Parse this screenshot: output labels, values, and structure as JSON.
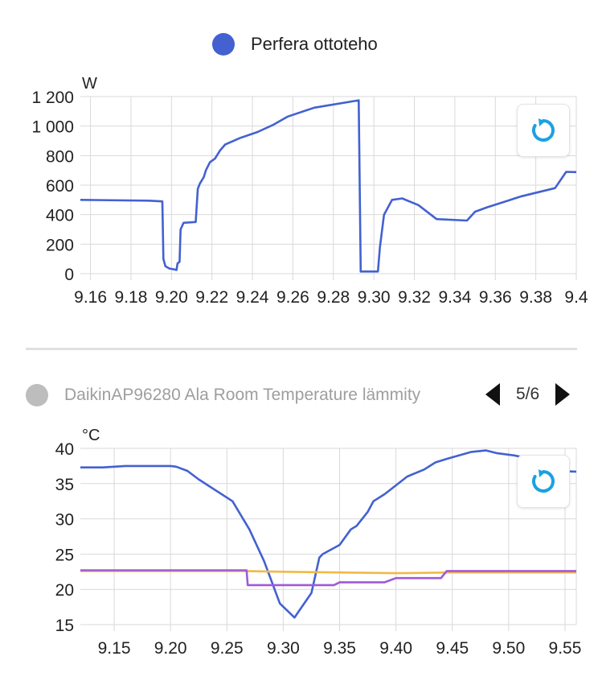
{
  "chart1": {
    "legend": {
      "label": "Perfera ottoteho",
      "color": "#4361d0"
    },
    "unit": "W",
    "reset_icon": "refresh-icon",
    "chart_data": {
      "type": "line",
      "ylim": [
        0,
        1200
      ],
      "xlim": [
        9.155,
        9.4
      ],
      "yticks": [
        0,
        200,
        400,
        600,
        800,
        1000,
        1200
      ],
      "ytick_labels": [
        "0",
        "200",
        "400",
        "600",
        "800",
        "1 000",
        "1 200"
      ],
      "xticks": [
        9.16,
        9.18,
        9.2,
        9.22,
        9.24,
        9.26,
        9.28,
        9.3,
        9.32,
        9.34,
        9.36,
        9.38,
        9.4
      ],
      "xtick_labels": [
        "9.16",
        "9.18",
        "9.20",
        "9.22",
        "9.24",
        "9.26",
        "9.28",
        "9.30",
        "9.32",
        "9.34",
        "9.36",
        "9.38",
        "9.4"
      ],
      "grid": true,
      "series": [
        {
          "name": "Perfera ottoteho",
          "color": "#4361d0",
          "x": [
            9.155,
            9.189,
            9.1955,
            9.196,
            9.197,
            9.199,
            9.201,
            9.2025,
            9.203,
            9.204,
            9.2045,
            9.206,
            9.212,
            9.213,
            9.214,
            9.216,
            9.217,
            9.219,
            9.2215,
            9.224,
            9.2265,
            9.234,
            9.2425,
            9.2505,
            9.2575,
            9.2705,
            9.2925,
            9.2935,
            9.296,
            9.302,
            9.303,
            9.305,
            9.309,
            9.314,
            9.322,
            9.331,
            9.346,
            9.35,
            9.356,
            9.373,
            9.3895,
            9.395,
            9.41
          ],
          "y": [
            500,
            495,
            490,
            100,
            50,
            35,
            30,
            25,
            70,
            80,
            300,
            345,
            350,
            575,
            610,
            655,
            700,
            755,
            780,
            835,
            875,
            920,
            960,
            1010,
            1065,
            1125,
            1175,
            15,
            15,
            15,
            180,
            400,
            500,
            510,
            465,
            370,
            360,
            420,
            450,
            525,
            580,
            690,
            685
          ]
        }
      ]
    }
  },
  "chart2": {
    "legend": {
      "label": "DaikinAP96280 Ala Room Temperature lämmity",
      "color": "#bdbdbd"
    },
    "pager": {
      "text": "5/6"
    },
    "unit": "°C",
    "reset_icon": "refresh-icon",
    "chart_data": {
      "type": "line",
      "ylim": [
        15,
        40
      ],
      "xlim": [
        9.12,
        9.56
      ],
      "yticks": [
        15,
        20,
        25,
        30,
        35,
        40
      ],
      "ytick_labels": [
        "15",
        "20",
        "25",
        "30",
        "35",
        "40"
      ],
      "xticks": [
        9.15,
        9.2,
        9.25,
        9.3,
        9.35,
        9.4,
        9.45,
        9.5,
        9.55
      ],
      "xtick_labels": [
        "9.15",
        "9.20",
        "9.25",
        "9.30",
        "9.35",
        "9.40",
        "9.45",
        "9.50",
        "9.55"
      ],
      "grid": true,
      "series": [
        {
          "color": "#4361d0",
          "x": [
            9.12,
            9.14,
            9.16,
            9.2,
            9.205,
            9.215,
            9.225,
            9.255,
            9.27,
            9.283,
            9.297,
            9.31,
            9.325,
            9.332,
            9.335,
            9.35,
            9.36,
            9.365,
            9.375,
            9.38,
            9.39,
            9.41,
            9.425,
            9.435,
            9.445,
            9.467,
            9.48,
            9.49,
            9.505,
            9.52,
            9.527,
            9.54,
            9.56
          ],
          "y": [
            37.3,
            37.3,
            37.5,
            37.5,
            37.4,
            36.8,
            35.6,
            32.5,
            28.5,
            24,
            18,
            16,
            19.5,
            24.5,
            25,
            26.3,
            28.5,
            29,
            31,
            32.5,
            33.5,
            36,
            37,
            38,
            38.5,
            39.5,
            39.7,
            39.3,
            39,
            38.5,
            38,
            36.8,
            36.7
          ]
        },
        {
          "color": "#f2b945",
          "x": [
            9.12,
            9.2,
            9.265,
            9.3,
            9.35,
            9.4,
            9.45,
            9.5,
            9.56
          ],
          "y": [
            22.6,
            22.6,
            22.6,
            22.5,
            22.4,
            22.3,
            22.4,
            22.4,
            22.4
          ]
        },
        {
          "color": "#a05ad6",
          "x": [
            9.12,
            9.2,
            9.2675,
            9.2685,
            9.3,
            9.345,
            9.35,
            9.39,
            9.4,
            9.44,
            9.445,
            9.5,
            9.56
          ],
          "y": [
            22.7,
            22.7,
            22.7,
            20.6,
            20.6,
            20.6,
            21,
            21,
            21.6,
            21.6,
            22.6,
            22.6,
            22.6
          ]
        }
      ]
    }
  }
}
